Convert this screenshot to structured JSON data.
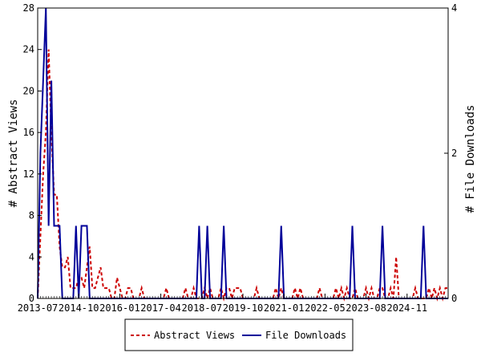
{
  "chart_data": {
    "type": "line",
    "y_left_label": "# Abstract Views",
    "y_right_label": "# File Downloads",
    "y_left_range": [
      0,
      28
    ],
    "y_left_ticks": [
      "0",
      "4",
      "8",
      "12",
      "16",
      "20",
      "24",
      "28"
    ],
    "y_right_range": [
      0,
      4
    ],
    "y_right_ticks": [
      "0",
      "2",
      "4"
    ],
    "x_ticks": [
      "2013-07",
      "2014-10",
      "2016-01",
      "2017-04",
      "2018-07",
      "2019-10",
      "2021-01",
      "2022-05",
      "2023-08",
      "2024-11"
    ],
    "legend_position": "bottom",
    "series": [
      {
        "name": "Abstract Views",
        "axis": "left",
        "color": "#cc0000",
        "style": "dashed",
        "values": [
          0,
          6,
          12,
          16,
          24,
          16,
          10,
          10,
          5,
          3,
          3,
          4,
          1,
          1,
          1,
          2,
          2,
          1,
          3,
          5,
          1,
          1,
          2,
          3,
          1,
          1,
          1,
          0,
          0,
          2,
          1,
          0,
          0,
          1,
          1,
          0,
          0,
          0,
          1,
          0,
          0,
          0,
          0,
          0,
          0,
          0,
          0,
          1,
          0,
          0,
          0,
          0,
          0,
          0,
          1,
          0,
          0,
          1,
          0,
          0,
          0,
          1,
          0,
          1,
          0,
          0,
          0,
          1,
          0,
          1,
          1,
          0,
          1,
          1,
          1,
          0,
          0,
          0,
          0,
          0,
          1,
          0,
          0,
          0,
          0,
          0,
          0,
          1,
          0,
          1,
          0,
          0,
          0,
          0,
          1,
          0,
          1,
          0,
          0,
          0,
          0,
          0,
          0,
          1,
          0,
          0,
          0,
          0,
          0,
          1,
          0,
          1,
          0,
          1,
          0,
          0,
          1,
          0,
          0,
          0,
          1,
          0,
          1,
          0,
          0,
          1,
          1,
          0,
          0,
          1,
          0,
          4,
          0,
          0,
          0,
          0,
          0,
          0,
          1,
          0,
          0,
          0,
          0,
          1,
          0,
          1,
          0,
          1,
          0,
          1,
          1
        ]
      },
      {
        "name": "File Downloads",
        "axis": "right",
        "color": "#000099",
        "style": "solid",
        "values": [
          0,
          2,
          3,
          4,
          1,
          3,
          1,
          1,
          1,
          0,
          0,
          0,
          0,
          0,
          1,
          0,
          1,
          1,
          1,
          0,
          0,
          0,
          0,
          0,
          0,
          0,
          0,
          0,
          0,
          0,
          0,
          0,
          0,
          0,
          0,
          0,
          0,
          0,
          0,
          0,
          0,
          0,
          0,
          0,
          0,
          0,
          0,
          0,
          0,
          0,
          0,
          0,
          0,
          0,
          0,
          0,
          0,
          0,
          0,
          1,
          0,
          0,
          1,
          0,
          0,
          0,
          0,
          0,
          1,
          0,
          0,
          0,
          0,
          0,
          0,
          0,
          0,
          0,
          0,
          0,
          0,
          0,
          0,
          0,
          0,
          0,
          0,
          0,
          0,
          1,
          0,
          0,
          0,
          0,
          0,
          0,
          0,
          0,
          0,
          0,
          0,
          0,
          0,
          0,
          0,
          0,
          0,
          0,
          0,
          0,
          0,
          0,
          0,
          0,
          0,
          1,
          0,
          0,
          0,
          0,
          0,
          0,
          0,
          0,
          0,
          0,
          1,
          0,
          0,
          0,
          0,
          0,
          0,
          0,
          0,
          0,
          0,
          0,
          0,
          0,
          0,
          1,
          0,
          0,
          0,
          0,
          0,
          0,
          0,
          0,
          0
        ]
      }
    ]
  }
}
